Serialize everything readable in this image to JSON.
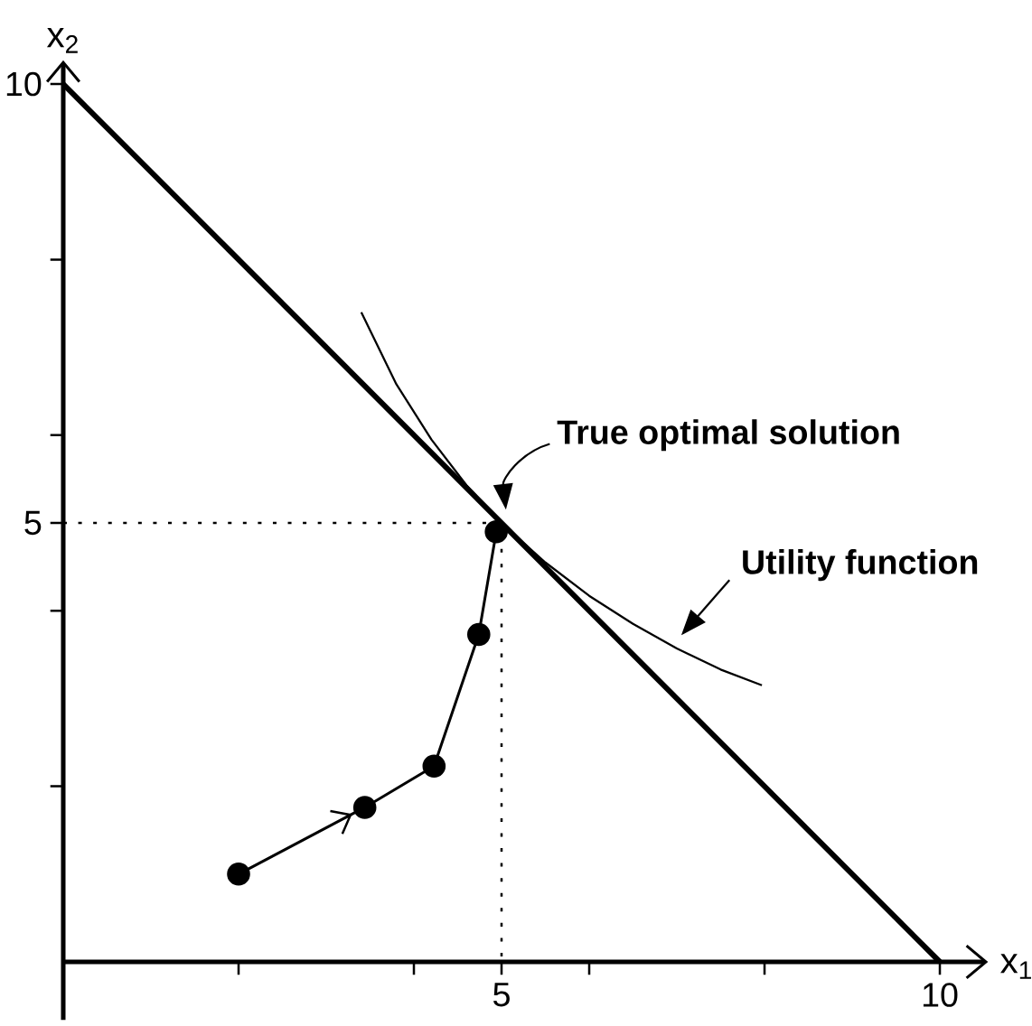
{
  "chart_data": {
    "type": "line",
    "xlabel": "x$_{1}$",
    "ylabel": "x$_{2}$",
    "xlim": [
      0,
      10.55
    ],
    "ylim": [
      0,
      10.27
    ],
    "xticks": [
      {
        "value": 2,
        "label": null
      },
      {
        "value": 4,
        "label": null
      },
      {
        "value": 5,
        "label": "5"
      },
      {
        "value": 6,
        "label": null
      },
      {
        "value": 8,
        "label": null
      },
      {
        "value": 10,
        "label": "10"
      }
    ],
    "yticks": [
      {
        "value": 2,
        "label": null
      },
      {
        "value": 4,
        "label": null
      },
      {
        "value": 5,
        "label": "5"
      },
      {
        "value": 6,
        "label": null
      },
      {
        "value": 8,
        "label": null
      },
      {
        "value": 10,
        "label": "10"
      }
    ],
    "series": [
      {
        "color": "#000000",
        "x": [
          0,
          10
        ],
        "values": [
          10,
          0
        ]
      },
      {
        "color": "#000000",
        "x": [
          3.4,
          3.8,
          4.2,
          4.6,
          5.0,
          5.5,
          6.0,
          6.5,
          7.0,
          7.5,
          7.97
        ],
        "values": [
          7.4,
          6.58,
          5.95,
          5.43,
          5.0,
          4.55,
          4.17,
          3.85,
          3.57,
          3.33,
          3.15
        ]
      },
      {
        "color": "#000000",
        "marker": "circle",
        "x": [
          2.0,
          3.44,
          4.23,
          4.74,
          4.94
        ],
        "values": [
          1.0,
          1.76,
          2.23,
          3.73,
          4.9
        ]
      },
      {
        "color": "#000000",
        "line_style": "dotted",
        "x": [
          0,
          5,
          5
        ],
        "values": [
          5,
          5,
          0
        ]
      }
    ],
    "annotations": [
      {
        "text": "True optimal solution",
        "x": 5,
        "y": 5
      },
      {
        "text": "Utility function",
        "x": 7.0,
        "y": 3.57
      }
    ]
  }
}
